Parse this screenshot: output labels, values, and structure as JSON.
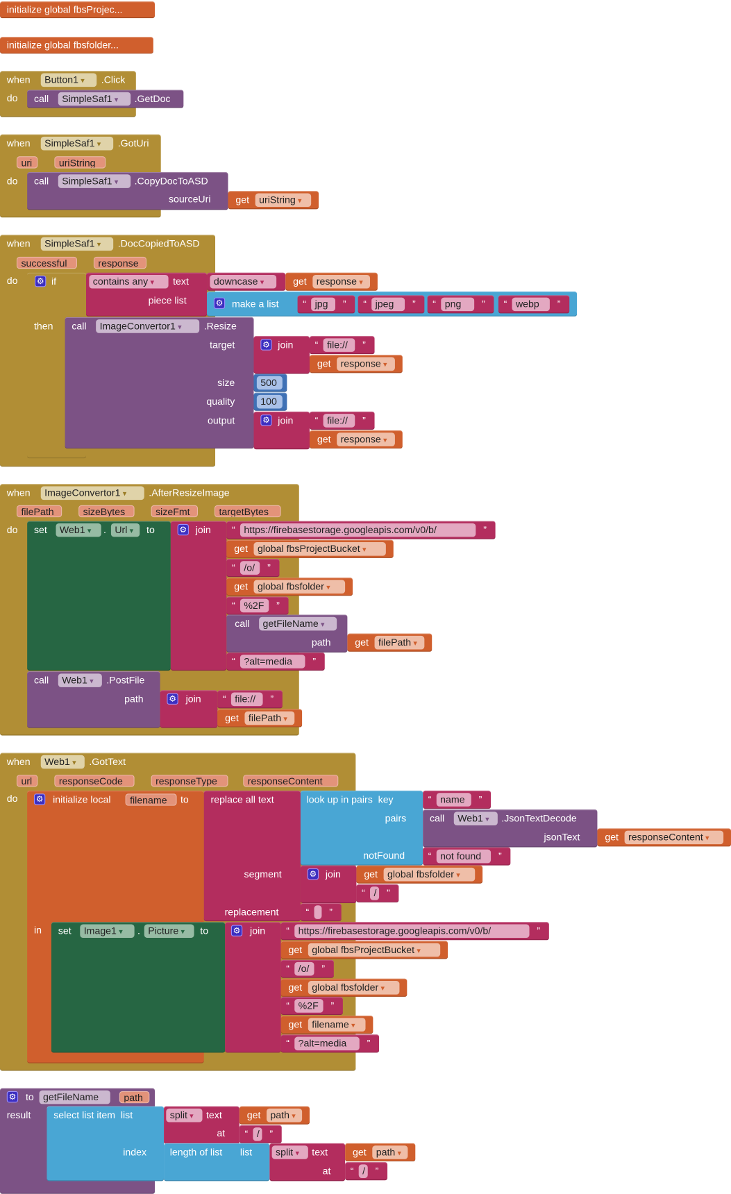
{
  "kw": {
    "when": "when",
    "do": "do",
    "call": "call",
    "get": "get",
    "then": "then",
    "if": "if",
    "set": "set",
    "to": "to",
    "in": "in",
    "join": "join",
    "dot": ".",
    "ql": "“",
    "qr": "”",
    "dd": "▾"
  },
  "globals": [
    "initialize global fbsProjec...",
    "initialize global fbsfolder..."
  ],
  "b1": {
    "component": "Button1",
    "event": ".Click",
    "call_component": "SimpleSaf1",
    "method": ".GetDoc"
  },
  "b2": {
    "component": "SimpleSaf1",
    "event": ".GotUri",
    "params": [
      "uri",
      "uriString"
    ],
    "call_component": "SimpleSaf1",
    "method": ".CopyDocToASD",
    "arg": "sourceUri",
    "get": "uriString"
  },
  "b3": {
    "component": "SimpleSaf1",
    "event": ".DocCopiedToASD",
    "params": [
      "successful",
      "response"
    ],
    "contains": "contains any",
    "text_label": "text",
    "piece_label": "piece list",
    "downcase": "downcase",
    "get_response": "response",
    "make_list": "make a list",
    "list": [
      "jpg",
      "jpeg",
      "png",
      "webp"
    ],
    "resize_component": "ImageConvertor1",
    "resize_method": ".Resize",
    "args": [
      "target",
      "size",
      "quality",
      "output"
    ],
    "prefix": "file://",
    "size": "500",
    "quality": "100"
  },
  "b4": {
    "component": "ImageConvertor1",
    "event": ".AfterResizeImage",
    "params": [
      "filePath",
      "sizeBytes",
      "sizeFmt",
      "targetBytes"
    ],
    "set_component": "Web1",
    "set_property": "Url",
    "url_base": "https://firebasestorage.googleapis.com/v0/b/",
    "bucket_var": "global fbsProjectBucket",
    "o_path": "/o/",
    "folder_var": "global fbsfolder",
    "encoded_slash": "%2F",
    "proc_name": "getFileName",
    "proc_arg": "path",
    "file_path_var": "filePath",
    "alt_media": "?alt=media",
    "post_component": "Web1",
    "post_method": ".PostFile",
    "post_arg": "path",
    "file_prefix": "file://"
  },
  "b5": {
    "component": "Web1",
    "event": ".GotText",
    "params": [
      "url",
      "responseCode",
      "responseType",
      "responseContent"
    ],
    "init_local": "initialize local",
    "local_name": "filename",
    "replace_all": "replace all text",
    "segment_label": "segment",
    "replacement_label": "replacement",
    "lookup": "look up in pairs  key",
    "pairs_label": "pairs",
    "notfound_label": "notFound",
    "key": "name",
    "decode_component": "Web1",
    "decode_method": ".JsonTextDecode",
    "decode_arg": "jsonText",
    "get_content": "responseContent",
    "not_found": "not found",
    "folder_var": "global fbsfolder",
    "slash": "/",
    "empty": "",
    "set_component": "Image1",
    "set_property": "Picture",
    "url_base": "https://firebasestorage.googleapis.com/v0/b/",
    "bucket_var": "global fbsProjectBucket",
    "o_path": "/o/",
    "encoded_slash": "%2F",
    "alt_media": "?alt=media"
  },
  "b6": {
    "name": "getFileName",
    "param": "path",
    "result_label": "result",
    "select": "select list item  list",
    "index_label": "index",
    "split": "split",
    "text_label": "text",
    "at_label": "at",
    "separator": "/",
    "length": "length of list",
    "list_label": "list"
  },
  "colors": {
    "event": "#B18E35",
    "procedure": "#7C5285",
    "variable": "#D05F2D",
    "text": "#B32D5E",
    "list": "#49A6D4",
    "math": "#3F71B5",
    "component_set": "#266643"
  }
}
